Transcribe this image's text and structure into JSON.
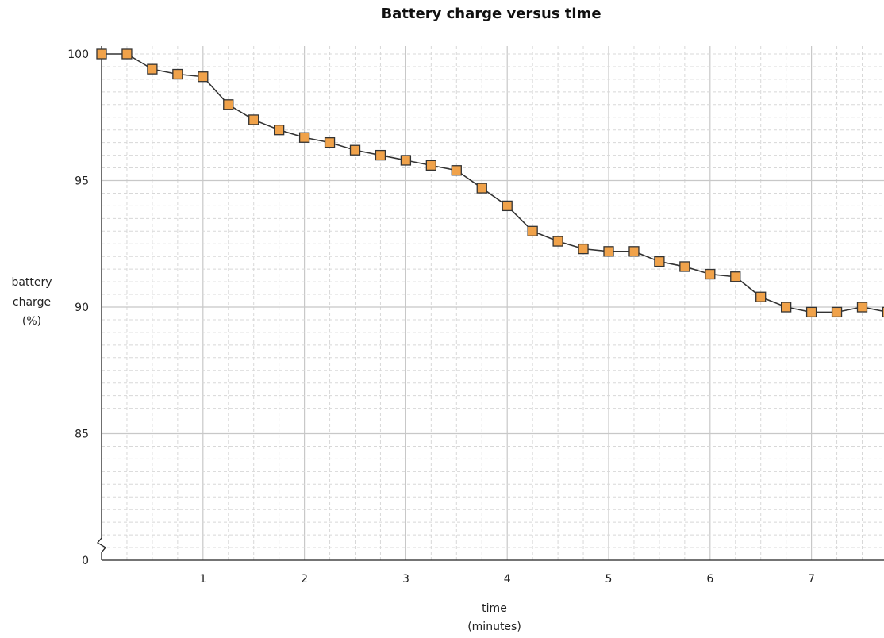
{
  "chart_data": {
    "type": "line",
    "title": "Battery charge versus time",
    "xlabel": [
      "time",
      "(minutes)"
    ],
    "ylabel": [
      "battery",
      "charge",
      "(%)"
    ],
    "x_ticks": [
      "1",
      "2",
      "3",
      "4",
      "5",
      "6",
      "7"
    ],
    "y_ticks": [
      {
        "value": 100,
        "label": "100"
      },
      {
        "value": 95,
        "label": "95"
      },
      {
        "value": 90,
        "label": "90"
      },
      {
        "value": 85,
        "label": "85"
      },
      {
        "value": 0,
        "label": "0"
      }
    ],
    "y_axis_break": "between 0 and 85",
    "xlim": [
      0,
      7.75
    ],
    "ylim_upper": 100,
    "grid": true,
    "series": [
      {
        "x": [
          0,
          0.25,
          0.5,
          0.75,
          1,
          1.25,
          1.5,
          1.75,
          2,
          2.25,
          2.5,
          2.75,
          3,
          3.25,
          3.5,
          3.75,
          4,
          4.25,
          4.5,
          4.75,
          5,
          5.25,
          5.5,
          5.75,
          6,
          6.25,
          6.5,
          6.75,
          7,
          7.25,
          7.5,
          7.75
        ],
        "values": [
          100,
          100,
          99.4,
          99.2,
          99.1,
          98.0,
          97.4,
          97.0,
          96.7,
          96.5,
          96.2,
          96.0,
          95.8,
          95.6,
          95.4,
          94.7,
          94.0,
          93.0,
          92.6,
          92.3,
          92.2,
          92.2,
          91.8,
          91.6,
          91.3,
          91.2,
          90.4,
          90.0,
          89.8,
          89.8,
          90.0,
          89.8
        ]
      }
    ],
    "colors": {
      "marker_fill": "#f0a24a",
      "marker_stroke": "#333333",
      "line": "#333333",
      "grid_major": "#c8c8c8",
      "grid_minor": "#d8d8d8"
    }
  }
}
